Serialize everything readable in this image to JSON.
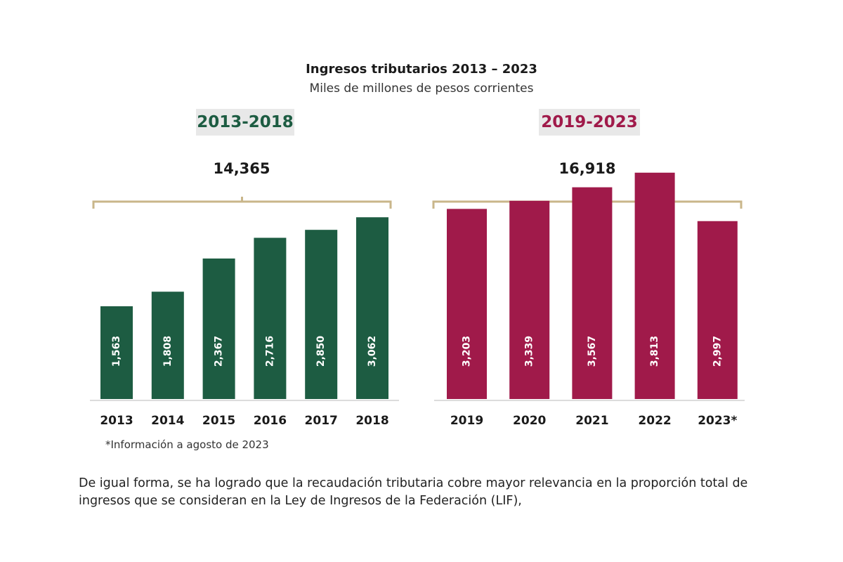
{
  "chart_data": {
    "type": "bar",
    "title": "Ingresos tributarios 2013 – 2023",
    "subtitle": "Miles de millones de pesos corrientes",
    "groups": [
      {
        "period": "2013-2018",
        "total": "14,365",
        "color": "#1d5c42",
        "categories": [
          "2013",
          "2014",
          "2015",
          "2016",
          "2017",
          "2018"
        ],
        "values": [
          1563,
          1808,
          2367,
          2716,
          2850,
          3062
        ],
        "value_labels": [
          "1,563",
          "1,808",
          "2,367",
          "2,716",
          "2,850",
          "3,062"
        ]
      },
      {
        "period": "2019-2023",
        "total": "16,918",
        "color": "#a01a4a",
        "categories": [
          "2019",
          "2020",
          "2021",
          "2022",
          "2023*"
        ],
        "values": [
          3203,
          3339,
          3567,
          3813,
          2997
        ],
        "value_labels": [
          "3,203",
          "3,339",
          "3,567",
          "3,813",
          "2,997"
        ]
      }
    ],
    "bracket_color": "#c9b68a"
  },
  "footnote": "*Información a agosto de 2023",
  "body_text": "De igual forma, se ha logrado que la recaudación tributaria cobre mayor relevancia en la proporción total de ingresos que se consideran en la Ley de Ingresos de la Federación (LIF),"
}
